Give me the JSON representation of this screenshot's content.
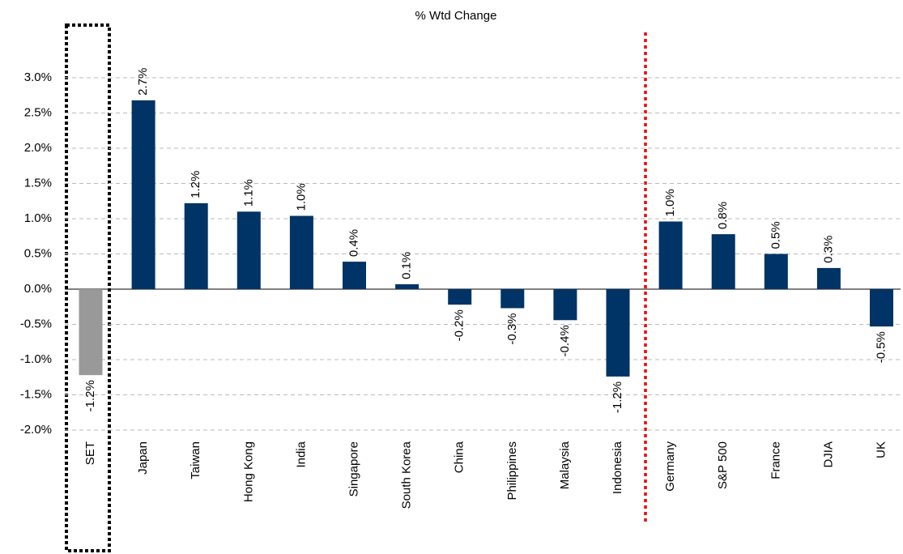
{
  "chart_data": {
    "type": "bar",
    "title": "% Wtd Change",
    "categories": [
      "SET",
      "Japan",
      "Taiwan",
      "Hong Kong",
      "India",
      "Singapore",
      "South Korea",
      "China",
      "Philippines",
      "Malaysia",
      "Indonesia",
      "Germany",
      "S&P 500",
      "France",
      "DJIA",
      "UK"
    ],
    "values": [
      -1.22,
      2.68,
      1.22,
      1.1,
      1.04,
      0.39,
      0.07,
      -0.22,
      -0.27,
      -0.44,
      -1.24,
      0.96,
      0.78,
      0.5,
      0.3,
      -0.53
    ],
    "value_labels": [
      "-1.2%",
      "2.7%",
      "1.2%",
      "1.1%",
      "1.0%",
      "0.4%",
      "0.1%",
      "-0.2%",
      "-0.3%",
      "-0.4%",
      "-1.2%",
      "1.0%",
      "0.8%",
      "0.5%",
      "0.3%",
      "-0.5%"
    ],
    "colors": [
      "#999999",
      "#003366",
      "#003366",
      "#003366",
      "#003366",
      "#003366",
      "#003366",
      "#003366",
      "#003366",
      "#003366",
      "#003366",
      "#003366",
      "#003366",
      "#003366",
      "#003366",
      "#003366"
    ],
    "ylim": [
      -2.0,
      3.5
    ],
    "yticks": [
      {
        "value": -2.0,
        "label": "-2.0%"
      },
      {
        "value": -1.5,
        "label": "-1.5%"
      },
      {
        "value": -1.0,
        "label": "-1.0%"
      },
      {
        "value": -0.5,
        "label": "-0.5%"
      },
      {
        "value": 0,
        "label": "0.0%"
      },
      {
        "value": 0.5,
        "label": "0.5%"
      },
      {
        "value": 1.0,
        "label": "1.0%"
      },
      {
        "value": 1.5,
        "label": "1.5%"
      },
      {
        "value": 2.0,
        "label": "2.0%"
      },
      {
        "value": 2.5,
        "label": "2.5%"
      },
      {
        "value": 3.0,
        "label": "3.0%"
      }
    ],
    "grid": true
  }
}
